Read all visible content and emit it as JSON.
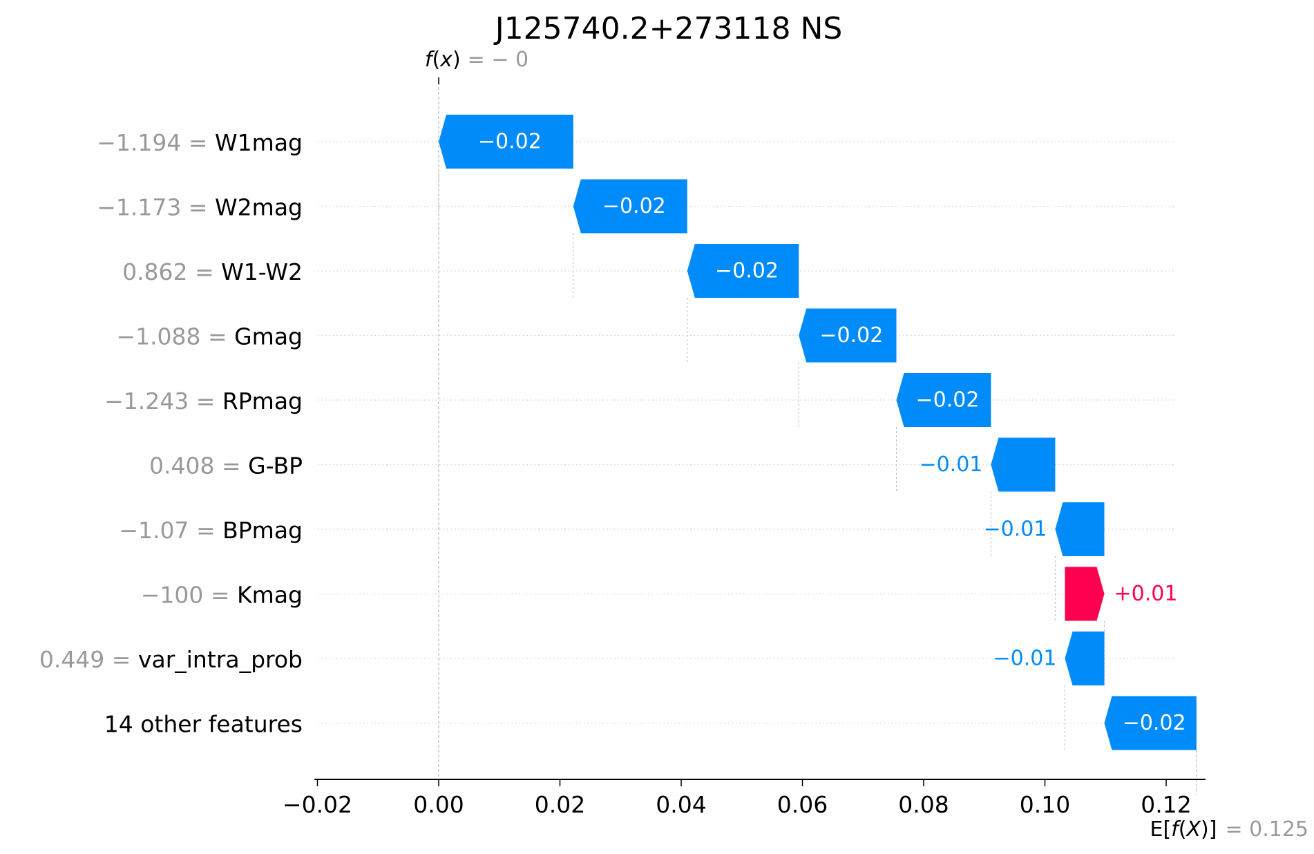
{
  "chart_data": {
    "type": "waterfall",
    "title": "J125740.2+273118 NS",
    "fx": {
      "prefix": "f",
      "var": "x",
      "value_text": "= − 0",
      "value": 0.0
    },
    "efx": {
      "label_pre": "E[",
      "label_f": "f",
      "label_mid": "(",
      "label_X": "X",
      "label_post": ")]",
      "value_text": "= 0.125",
      "value": 0.125
    },
    "xlim": [
      -0.0205,
      0.1265
    ],
    "xticks": [
      -0.02,
      0.0,
      0.02,
      0.04,
      0.06,
      0.08,
      0.1,
      0.12
    ],
    "xtick_labels": [
      "−0.02",
      "0.00",
      "0.02",
      "0.04",
      "0.06",
      "0.08",
      "0.10",
      "0.12"
    ],
    "grid": "horizontal dotted",
    "colors": {
      "positive": "#ff0051",
      "negative": "#008bfb",
      "axis": "#000000",
      "muted": "#999999"
    },
    "features": [
      {
        "value": "−1.194",
        "name": "W1mag",
        "start": 0.0222,
        "end": 0.0,
        "label": "−0.02",
        "sign": "neg"
      },
      {
        "value": "−1.173",
        "name": "W2mag",
        "start": 0.041,
        "end": 0.0222,
        "label": "−0.02",
        "sign": "neg"
      },
      {
        "value": "0.862",
        "name": "W1-W2",
        "start": 0.0594,
        "end": 0.041,
        "label": "−0.02",
        "sign": "neg"
      },
      {
        "value": "−1.088",
        "name": "Gmag",
        "start": 0.0755,
        "end": 0.0594,
        "label": "−0.02",
        "sign": "neg"
      },
      {
        "value": "−1.243",
        "name": "RPmag",
        "start": 0.0911,
        "end": 0.0755,
        "label": "−0.02",
        "sign": "neg"
      },
      {
        "value": "0.408",
        "name": "G-BP",
        "start": 0.1017,
        "end": 0.0911,
        "label": "−0.01",
        "sign": "neg"
      },
      {
        "value": "−1.07",
        "name": "BPmag",
        "start": 0.1098,
        "end": 0.1017,
        "label": "−0.01",
        "sign": "neg"
      },
      {
        "value": "−100",
        "name": "Kmag",
        "start": 0.1033,
        "end": 0.1098,
        "label": "+0.01",
        "sign": "pos"
      },
      {
        "value": "0.449",
        "name": "var_intra_prob",
        "start": 0.1098,
        "end": 0.1033,
        "label": "−0.01",
        "sign": "neg"
      },
      {
        "value": "",
        "name": "14 other features",
        "start": 0.125,
        "end": 0.1098,
        "label": "−0.02",
        "sign": "neg"
      }
    ]
  }
}
